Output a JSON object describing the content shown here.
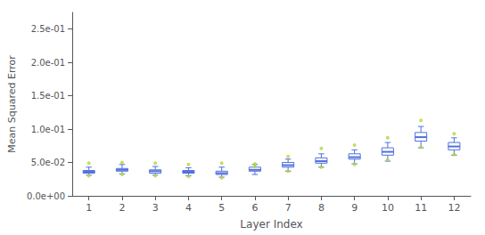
{
  "chart_data": {
    "type": "box",
    "xlabel": "Layer Index",
    "ylabel": "Mean Squared Error",
    "x": [
      1,
      2,
      3,
      4,
      5,
      6,
      7,
      8,
      9,
      10,
      11,
      12
    ],
    "xlim": [
      0.5,
      12.5
    ],
    "xticks": [
      1,
      2,
      3,
      4,
      5,
      6,
      7,
      8,
      9,
      10,
      11,
      12
    ],
    "ylim": [
      0.0,
      0.275
    ],
    "yticks": [
      {
        "value": 0.0,
        "label": "0.0e+00"
      },
      {
        "value": 0.05,
        "label": "5.0e-02"
      },
      {
        "value": 0.1,
        "label": "1.0e-01"
      },
      {
        "value": 0.15,
        "label": "1.5e-01"
      },
      {
        "value": 0.2,
        "label": "2.0e-01"
      },
      {
        "value": 0.25,
        "label": "2.5e-01"
      }
    ],
    "grid": false,
    "boxes": [
      {
        "median": 0.036,
        "q1": 0.034,
        "q3": 0.038,
        "whislo": 0.031,
        "whishi": 0.043,
        "fliers": [
          0.049,
          0.03
        ]
      },
      {
        "median": 0.039,
        "q1": 0.037,
        "q3": 0.041,
        "whislo": 0.033,
        "whishi": 0.047,
        "fliers": [
          0.05,
          0.032
        ]
      },
      {
        "median": 0.037,
        "q1": 0.034,
        "q3": 0.039,
        "whislo": 0.031,
        "whishi": 0.044,
        "fliers": [
          0.049,
          0.03
        ]
      },
      {
        "median": 0.036,
        "q1": 0.034,
        "q3": 0.038,
        "whislo": 0.03,
        "whishi": 0.042,
        "fliers": [
          0.047,
          0.029
        ]
      },
      {
        "median": 0.034,
        "q1": 0.032,
        "q3": 0.037,
        "whislo": 0.028,
        "whishi": 0.043,
        "fliers": [
          0.049,
          0.027
        ]
      },
      {
        "median": 0.039,
        "q1": 0.037,
        "q3": 0.043,
        "whislo": 0.032,
        "whishi": 0.047,
        "fliers": [
          0.048,
          0.044
        ]
      },
      {
        "median": 0.046,
        "q1": 0.043,
        "q3": 0.05,
        "whislo": 0.037,
        "whishi": 0.055,
        "fliers": [
          0.059,
          0.037
        ]
      },
      {
        "median": 0.052,
        "q1": 0.049,
        "q3": 0.057,
        "whislo": 0.043,
        "whishi": 0.063,
        "fliers": [
          0.071,
          0.043
        ]
      },
      {
        "median": 0.058,
        "q1": 0.055,
        "q3": 0.063,
        "whislo": 0.048,
        "whishi": 0.069,
        "fliers": [
          0.076,
          0.047
        ]
      },
      {
        "median": 0.066,
        "q1": 0.061,
        "q3": 0.072,
        "whislo": 0.052,
        "whishi": 0.08,
        "fliers": [
          0.087,
          0.054
        ]
      },
      {
        "median": 0.088,
        "q1": 0.082,
        "q3": 0.095,
        "whislo": 0.072,
        "whishi": 0.104,
        "fliers": [
          0.113,
          0.073
        ]
      },
      {
        "median": 0.074,
        "q1": 0.069,
        "q3": 0.08,
        "whislo": 0.061,
        "whishi": 0.087,
        "fliers": [
          0.093,
          0.062
        ]
      }
    ]
  }
}
